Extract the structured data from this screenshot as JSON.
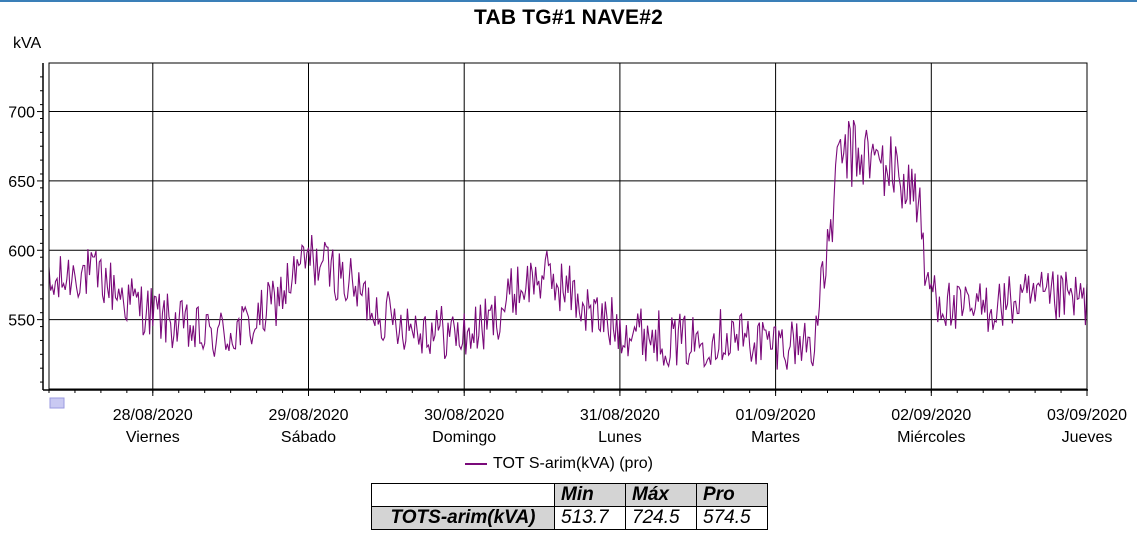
{
  "chart_data": {
    "type": "line",
    "title": "TAB TG#1 NAVE#2",
    "ylabel": "kVA",
    "ylim": [
      500,
      735
    ],
    "y_ticks": [
      550,
      600,
      650,
      700
    ],
    "x_range": [
      "27/08/2020 08:00",
      "03/09/2020 00:00"
    ],
    "x_ticks": [
      {
        "date": "28/08/2020",
        "day": "Viernes"
      },
      {
        "date": "29/08/2020",
        "day": "Sábado"
      },
      {
        "date": "30/08/2020",
        "day": "Domingo"
      },
      {
        "date": "31/08/2020",
        "day": "Lunes"
      },
      {
        "date": "01/09/2020",
        "day": "Martes"
      },
      {
        "date": "02/09/2020",
        "day": "Miércoles"
      },
      {
        "date": "03/09/2020",
        "day": "Jueves"
      }
    ],
    "grid": true,
    "legend_position": "bottom-center",
    "series": [
      {
        "name": "TOT S-arim(kVA) (pro)",
        "color": "#7a0a7a",
        "points": [
          [
            "27/08/2020 08:00",
            570
          ],
          [
            "27/08/2020 12:00",
            585
          ],
          [
            "27/08/2020 16:00",
            580
          ],
          [
            "27/08/2020 20:00",
            565
          ],
          [
            "28/08/2020 00:00",
            555
          ],
          [
            "28/08/2020 04:00",
            545
          ],
          [
            "28/08/2020 08:00",
            538
          ],
          [
            "28/08/2020 12:00",
            540
          ],
          [
            "28/08/2020 16:00",
            548
          ],
          [
            "28/08/2020 20:00",
            570
          ],
          [
            "29/08/2020 00:00",
            595
          ],
          [
            "29/08/2020 04:00",
            585
          ],
          [
            "29/08/2020 08:00",
            568
          ],
          [
            "29/08/2020 12:00",
            552
          ],
          [
            "29/08/2020 16:00",
            546
          ],
          [
            "29/08/2020 20:00",
            542
          ],
          [
            "30/08/2020 00:00",
            538
          ],
          [
            "30/08/2020 04:00",
            548
          ],
          [
            "30/08/2020 08:00",
            572
          ],
          [
            "30/08/2020 12:00",
            582
          ],
          [
            "30/08/2020 16:00",
            572
          ],
          [
            "30/08/2020 20:00",
            552
          ],
          [
            "31/08/2020 00:00",
            545
          ],
          [
            "31/08/2020 04:00",
            540
          ],
          [
            "31/08/2020 08:00",
            535
          ],
          [
            "31/08/2020 12:00",
            534
          ],
          [
            "31/08/2020 16:00",
            540
          ],
          [
            "31/08/2020 20:00",
            536
          ],
          [
            "01/09/2020 00:00",
            532
          ],
          [
            "01/09/2020 04:00",
            534
          ],
          [
            "01/09/2020 06:00",
            535
          ],
          [
            "01/09/2020 08:00",
            600
          ],
          [
            "01/09/2020 10:00",
            670
          ],
          [
            "01/09/2020 14:00",
            668
          ],
          [
            "01/09/2020 18:00",
            658
          ],
          [
            "01/09/2020 22:00",
            640
          ],
          [
            "01/09/2020 23:00",
            580
          ],
          [
            "02/09/2020 02:00",
            562
          ],
          [
            "02/09/2020 04:00",
            555
          ]
        ]
      }
    ]
  },
  "legend": {
    "label": "TOT S-arim(kVA) (pro)"
  },
  "stats": {
    "headers": [
      "Min",
      "Máx",
      "Pro"
    ],
    "row_label": "TOTS-arim(kVA)",
    "values": [
      "513.7",
      "724.5",
      "574.5"
    ]
  }
}
